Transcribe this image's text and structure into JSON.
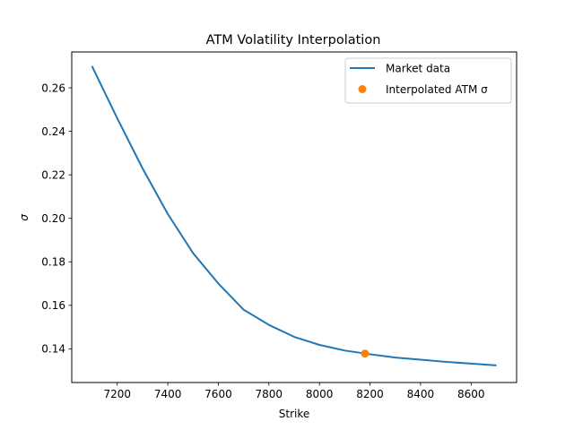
{
  "chart_data": {
    "type": "line",
    "title": "ATM Volatility Interpolation",
    "xlabel": "Strike",
    "ylabel": "σ",
    "xlim": [
      7020,
      8780
    ],
    "ylim": [
      0.1245,
      0.2765
    ],
    "xticks": [
      7200,
      7400,
      7600,
      7800,
      8000,
      8200,
      8400,
      8600
    ],
    "yticks": [
      0.14,
      0.16,
      0.18,
      0.2,
      0.22,
      0.24,
      0.26
    ],
    "ytick_labels": [
      "0.14",
      "0.16",
      "0.18",
      "0.20",
      "0.22",
      "0.24",
      "0.26"
    ],
    "grid": false,
    "legend_position": "top-right",
    "series": [
      {
        "name": "Market data",
        "kind": "line",
        "color": "#1f77b4",
        "x": [
          7100,
          7200,
          7300,
          7400,
          7500,
          7600,
          7700,
          7800,
          7900,
          8000,
          8100,
          8200,
          8300,
          8400,
          8500,
          8600,
          8700
        ],
        "y": [
          0.27,
          0.246,
          0.223,
          0.202,
          0.184,
          0.17,
          0.158,
          0.151,
          0.1455,
          0.1418,
          0.1392,
          0.1375,
          0.136,
          0.135,
          0.134,
          0.1332,
          0.1324
        ]
      },
      {
        "name": "Interpolated ATM σ",
        "kind": "point",
        "color": "#ff7f0e",
        "x": [
          8180
        ],
        "y": [
          0.1378
        ]
      }
    ]
  }
}
